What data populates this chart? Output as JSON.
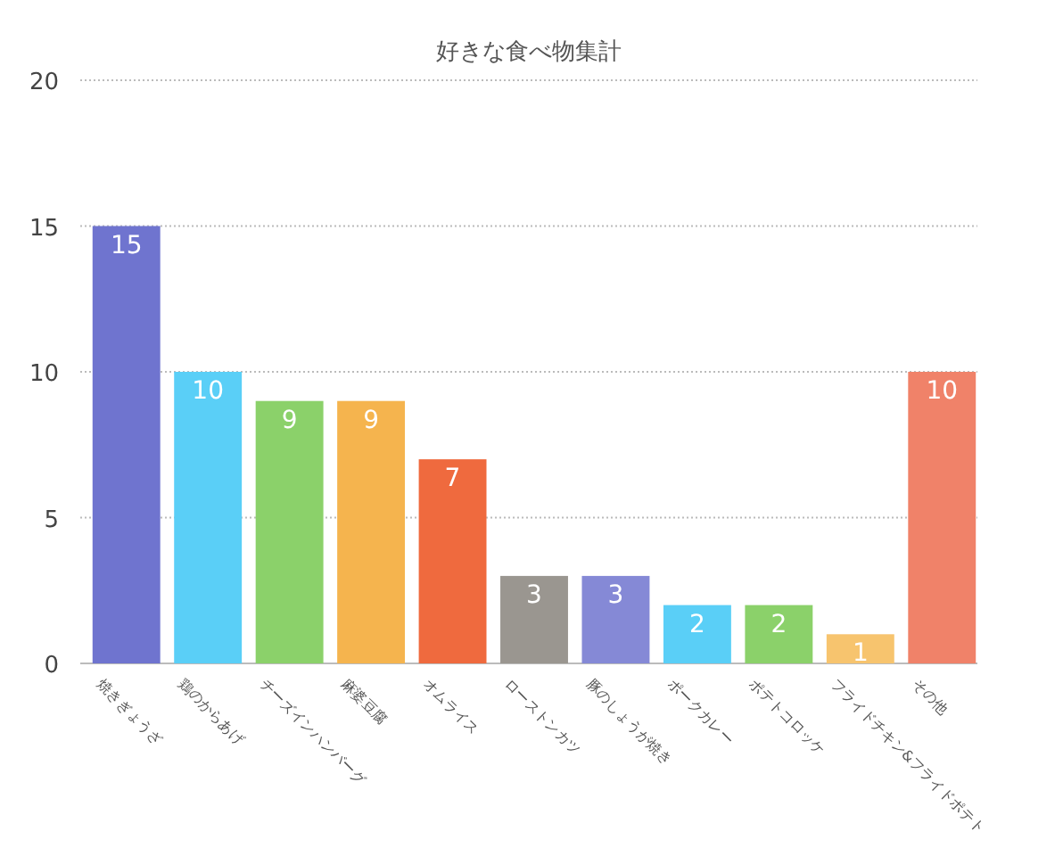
{
  "chart_data": {
    "type": "bar",
    "title": "好きな食べ物集計",
    "categories": [
      "焼きぎょうざ",
      "鶏のからあげ",
      "チーズインハンバーグ",
      "麻婆豆腐",
      "オムライス",
      "ローストンカツ",
      "豚のしょうが焼き",
      "ポークカレー",
      "ポテトコロッケ",
      "フライドチキン&フライドポテト",
      "その他"
    ],
    "values": [
      15,
      10,
      9,
      9,
      7,
      3,
      3,
      2,
      2,
      1,
      10
    ],
    "colors": [
      "#6f74cf",
      "#5acff7",
      "#8bd16a",
      "#f5b44e",
      "#ef6a3e",
      "#9a9690",
      "#8589d6",
      "#5acff7",
      "#8bd16a",
      "#f7c46e",
      "#f08269"
    ],
    "ylim": [
      0,
      20
    ],
    "yticks": [
      0,
      5,
      10,
      15,
      20
    ],
    "grid": "y",
    "data_labels": true
  }
}
